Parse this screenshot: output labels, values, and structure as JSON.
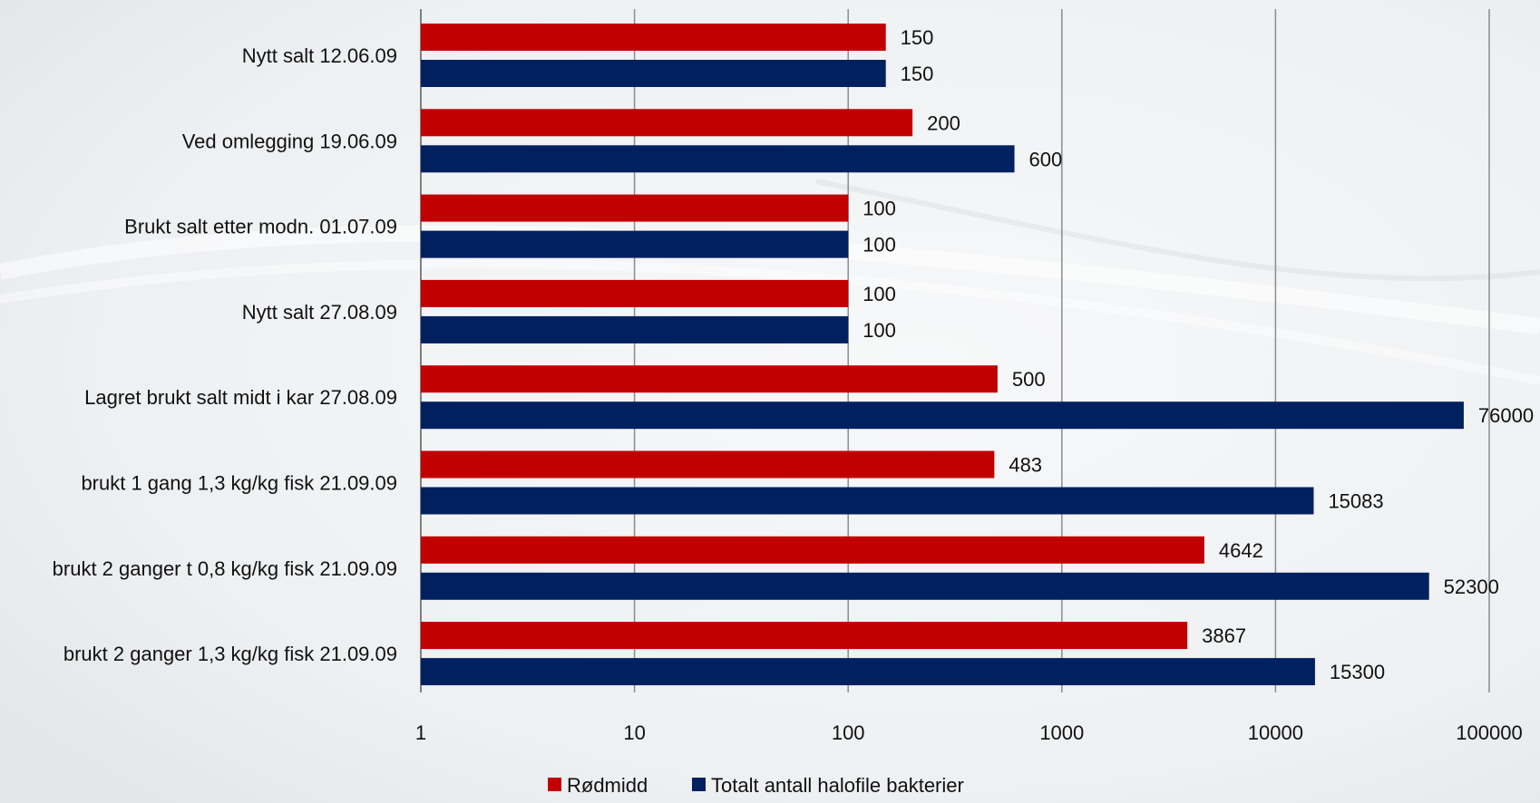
{
  "chart_data": {
    "type": "bar",
    "orientation": "horizontal",
    "x_scale": "log",
    "xlim": [
      1,
      100000
    ],
    "x_ticks": [
      "1",
      "10",
      "100",
      "1000",
      "10000",
      "100000"
    ],
    "grid": "vertical",
    "legend_position": "bottom",
    "categories": [
      "Nytt salt 12.06.09",
      "Ved omlegging 19.06.09",
      "Brukt salt etter modn. 01.07.09",
      "Nytt salt 27.08.09",
      "Lagret brukt salt midt i kar 27.08.09",
      "brukt 1 gang 1,3 kg/kg fisk 21.09.09",
      "brukt 2 ganger t 0,8 kg/kg fisk 21.09.09",
      "brukt 2 ganger 1,3 kg/kg fisk 21.09.09"
    ],
    "series": [
      {
        "name": "Rødmidd",
        "color": "#C00000",
        "values": [
          150,
          200,
          100,
          100,
          500,
          483,
          4642,
          3867
        ],
        "labels": [
          "150",
          "200",
          "100",
          "100",
          "500",
          "483",
          "4642",
          "3867"
        ]
      },
      {
        "name": "Totalt antall halofile bakterier",
        "color": "#002060",
        "values": [
          150,
          600,
          100,
          100,
          76000,
          15083,
          52300,
          15300
        ],
        "labels": [
          "150",
          "600",
          "100",
          "100",
          "76000",
          "15083",
          "52300",
          "15300"
        ]
      }
    ],
    "title": "",
    "xlabel": "",
    "ylabel": ""
  }
}
